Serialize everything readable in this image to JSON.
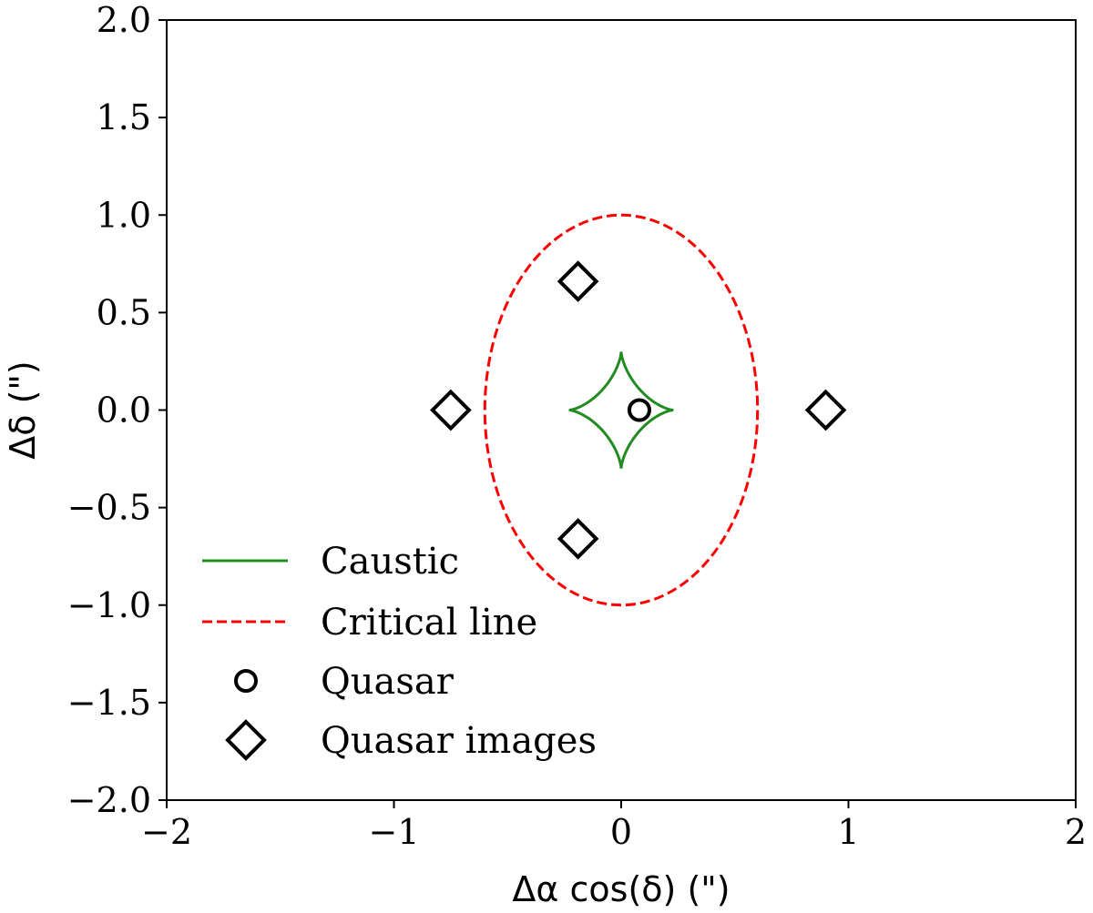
{
  "chart_data": {
    "type": "scatter",
    "xlabel": "Δα cos(δ) (\")",
    "ylabel": "Δδ (\")",
    "xlim": [
      -2,
      2
    ],
    "ylim": [
      -2,
      2
    ],
    "x_ticks": [
      -2,
      -1,
      0,
      1,
      2
    ],
    "x_tick_labels": [
      "−2",
      "−1",
      "0",
      "1",
      "2"
    ],
    "y_ticks": [
      2.0,
      1.5,
      1.0,
      0.5,
      0.0,
      -0.5,
      -1.0,
      -1.5,
      -2.0
    ],
    "y_tick_labels": [
      "2.0",
      "1.5",
      "1.0",
      "0.5",
      "0.0",
      "−0.5",
      "−1.0",
      "−1.5",
      "−2.0"
    ],
    "grid": false,
    "legend_position": "lower-left",
    "series": [
      {
        "name": "Caustic",
        "kind": "astroid-line",
        "color": "#228b22",
        "line_style": "solid",
        "center": [
          0.0,
          0.0
        ],
        "semi_axis_x": 0.23,
        "semi_axis_y": 0.3
      },
      {
        "name": "Critical line",
        "kind": "ellipse-line",
        "color": "#ff0000",
        "line_style": "dashed",
        "center": [
          0.0,
          0.0
        ],
        "semi_axis_x": 0.6,
        "semi_axis_y": 1.0
      },
      {
        "name": "Quasar",
        "kind": "marker",
        "marker": "circle",
        "color": "#000000",
        "points": [
          [
            0.08,
            0.0
          ]
        ]
      },
      {
        "name": "Quasar images",
        "kind": "marker",
        "marker": "diamond",
        "color": "#000000",
        "points": [
          [
            -0.19,
            0.66
          ],
          [
            -0.75,
            0.0
          ],
          [
            0.9,
            0.0
          ],
          [
            -0.19,
            -0.66
          ]
        ]
      }
    ]
  }
}
